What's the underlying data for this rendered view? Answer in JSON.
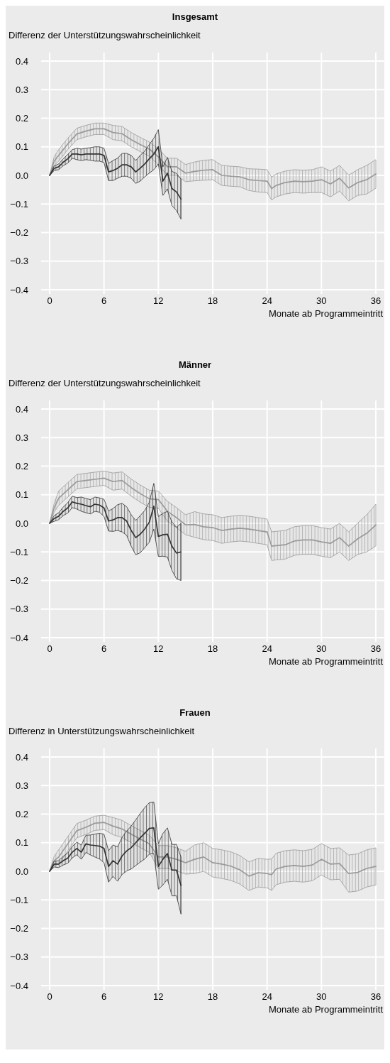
{
  "chart_data": [
    {
      "type": "line",
      "title": "Insgesamt",
      "ylabel": "Differenz der Unterstützungswahrscheinlichkeit",
      "xlabel": "Monate ab Programmeintritt",
      "xlim": [
        0,
        36
      ],
      "ylim": [
        -0.4,
        0.4
      ],
      "xticks": [
        0,
        6,
        12,
        18,
        24,
        30,
        36
      ],
      "yticks": [
        0.4,
        0.3,
        0.2,
        0.1,
        {
          "value": 0,
          "label": "0.0"
        },
        {
          "value": -0.1,
          "label": "−0.1"
        },
        {
          "value": -0.2,
          "label": "−0.2"
        },
        {
          "value": -0.3,
          "label": "−0.3"
        },
        {
          "value": -0.4,
          "label": "−0.4"
        }
      ],
      "grid": true,
      "series": [
        {
          "color": "#9a9a9a",
          "x": [
            0,
            0.5,
            1,
            2,
            3,
            4,
            5,
            6,
            7,
            8,
            9,
            10,
            11,
            12,
            13,
            14,
            15,
            16,
            17,
            18,
            19,
            20,
            21,
            22,
            23,
            24,
            24.5,
            25,
            26,
            27,
            28,
            29,
            30,
            31,
            32,
            33,
            34,
            35,
            36
          ],
          "values": [
            0,
            0.05,
            0.07,
            0.11,
            0.145,
            0.155,
            0.163,
            0.163,
            0.15,
            0.146,
            0.125,
            0.108,
            0.092,
            0.065,
            0.03,
            0.03,
            0.008,
            0.014,
            0.018,
            0.02,
            0,
            -0.003,
            -0.005,
            -0.015,
            -0.018,
            -0.02,
            -0.046,
            -0.035,
            -0.025,
            -0.02,
            -0.022,
            -0.02,
            -0.015,
            -0.03,
            -0.01,
            -0.044,
            -0.025,
            -0.015,
            0.005
          ],
          "lower": [
            0,
            0.035,
            0.05,
            0.09,
            0.125,
            0.135,
            0.143,
            0.143,
            0.125,
            0.121,
            0.1,
            0.083,
            0.067,
            0.037,
            0,
            0,
            -0.022,
            -0.019,
            -0.017,
            -0.015,
            -0.035,
            -0.038,
            -0.04,
            -0.053,
            -0.058,
            -0.06,
            -0.086,
            -0.075,
            -0.065,
            -0.06,
            -0.062,
            -0.06,
            -0.06,
            -0.075,
            -0.055,
            -0.089,
            -0.07,
            -0.065,
            -0.045
          ],
          "upper": [
            0,
            0.065,
            0.09,
            0.13,
            0.165,
            0.175,
            0.183,
            0.183,
            0.175,
            0.171,
            0.15,
            0.133,
            0.117,
            0.093,
            0.06,
            0.06,
            0.038,
            0.047,
            0.053,
            0.055,
            0.035,
            0.032,
            0.03,
            0.023,
            0.022,
            0.02,
            -0.006,
            0.005,
            0.015,
            0.02,
            0.018,
            0.02,
            0.03,
            0.015,
            0.035,
            0.001,
            0.02,
            0.035,
            0.055
          ]
        },
        {
          "color": "#333333",
          "x": [
            0,
            0.5,
            1,
            1.5,
            2,
            2.5,
            3,
            3.5,
            4,
            4.5,
            5,
            5.5,
            6,
            6.5,
            7,
            7.5,
            8,
            8.5,
            9,
            9.5,
            10,
            10.5,
            11,
            11.5,
            12,
            12.5,
            13,
            13.5,
            14,
            14.5
          ],
          "values": [
            0,
            0.025,
            0.03,
            0.046,
            0.058,
            0.075,
            0.075,
            0.072,
            0.075,
            0.075,
            0.075,
            0.075,
            0.07,
            0.012,
            0.017,
            0.025,
            0.037,
            0.037,
            0.03,
            0.012,
            0.025,
            0.04,
            0.058,
            0.075,
            0.1,
            -0.02,
            0.008,
            -0.046,
            -0.058,
            -0.083
          ],
          "lower": [
            0,
            0.017,
            0.02,
            0.034,
            0.043,
            0.06,
            0.055,
            0.052,
            0.055,
            0.053,
            0.05,
            0.05,
            0.045,
            -0.018,
            -0.018,
            -0.01,
            -0.003,
            -0.003,
            -0.01,
            -0.028,
            -0.02,
            -0.005,
            0.008,
            0.02,
            0.04,
            -0.07,
            -0.047,
            -0.106,
            -0.123,
            -0.153
          ],
          "upper": [
            0,
            0.033,
            0.04,
            0.058,
            0.073,
            0.09,
            0.095,
            0.092,
            0.095,
            0.097,
            0.1,
            0.1,
            0.095,
            0.042,
            0.052,
            0.06,
            0.077,
            0.077,
            0.07,
            0.052,
            0.07,
            0.085,
            0.108,
            0.13,
            0.16,
            0.03,
            0.063,
            0.014,
            0.007,
            -0.013
          ]
        }
      ]
    },
    {
      "type": "line",
      "title": "Männer",
      "ylabel": "Differenz der Unterstützungswahrscheinlichkeit",
      "xlabel": "Monate ab Programmeintritt",
      "xlim": [
        0,
        36
      ],
      "ylim": [
        -0.4,
        0.4
      ],
      "xticks": [
        0,
        6,
        12,
        18,
        24,
        30,
        36
      ],
      "yticks": [
        0.4,
        0.3,
        0.2,
        0.1,
        {
          "value": 0,
          "label": "0.0"
        },
        {
          "value": -0.1,
          "label": "−0.1"
        },
        {
          "value": -0.2,
          "label": "−0.2"
        },
        {
          "value": -0.3,
          "label": "−0.3"
        },
        {
          "value": -0.4,
          "label": "−0.4"
        }
      ],
      "grid": true,
      "series": [
        {
          "color": "#9a9a9a",
          "x": [
            0,
            0.5,
            1,
            2,
            3,
            4,
            5,
            6,
            7,
            8,
            9,
            10,
            11,
            12,
            13,
            14,
            15,
            16,
            17,
            18,
            19,
            20,
            21,
            22,
            23,
            24,
            24.5,
            25,
            26,
            27,
            28,
            29,
            30,
            31,
            32,
            33,
            34,
            35,
            36
          ],
          "values": [
            0,
            0.054,
            0.088,
            0.117,
            0.146,
            0.15,
            0.154,
            0.158,
            0.146,
            0.15,
            0.125,
            0.104,
            0.086,
            0.083,
            0.042,
            0.02,
            -0.005,
            -0.004,
            -0.012,
            -0.015,
            -0.025,
            -0.02,
            -0.017,
            -0.02,
            -0.025,
            -0.03,
            -0.08,
            -0.078,
            -0.075,
            -0.062,
            -0.058,
            -0.058,
            -0.065,
            -0.07,
            -0.05,
            -0.08,
            -0.054,
            -0.035,
            -0.006
          ],
          "lower": [
            0,
            0.039,
            0.063,
            0.092,
            0.121,
            0.125,
            0.129,
            0.133,
            0.116,
            0.12,
            0.095,
            0.074,
            0.056,
            0.053,
            0.007,
            -0.015,
            -0.04,
            -0.049,
            -0.057,
            -0.06,
            -0.07,
            -0.065,
            -0.062,
            -0.065,
            -0.07,
            -0.075,
            -0.13,
            -0.128,
            -0.125,
            -0.112,
            -0.108,
            -0.108,
            -0.115,
            -0.12,
            -0.1,
            -0.13,
            -0.109,
            -0.1,
            -0.079
          ],
          "upper": [
            0,
            0.069,
            0.113,
            0.142,
            0.171,
            0.175,
            0.179,
            0.183,
            0.176,
            0.18,
            0.155,
            0.134,
            0.116,
            0.113,
            0.077,
            0.055,
            0.03,
            0.041,
            0.033,
            0.03,
            0.02,
            0.025,
            0.028,
            0.025,
            0.02,
            0.015,
            -0.03,
            -0.028,
            -0.025,
            -0.012,
            -0.008,
            -0.008,
            -0.015,
            -0.02,
            0,
            -0.03,
            0.001,
            0.03,
            0.067
          ]
        },
        {
          "color": "#333333",
          "x": [
            0,
            0.5,
            1,
            1.5,
            2,
            2.5,
            3,
            3.5,
            4,
            4.5,
            5,
            5.5,
            6,
            6.5,
            7,
            7.5,
            8,
            8.5,
            9,
            9.5,
            10,
            10.5,
            11,
            11.5,
            12,
            12.5,
            13,
            13.5,
            14,
            14.5
          ],
          "values": [
            0,
            0.017,
            0.025,
            0.042,
            0.054,
            0.075,
            0.07,
            0.067,
            0.062,
            0.058,
            0.067,
            0.064,
            0.054,
            0.008,
            0.012,
            0.02,
            0.02,
            0.008,
            -0.025,
            -0.05,
            -0.038,
            -0.02,
            0.004,
            0.06,
            -0.046,
            -0.04,
            -0.038,
            -0.08,
            -0.104,
            -0.1
          ],
          "lower": [
            0,
            0.007,
            0.013,
            0.027,
            0.036,
            0.055,
            0.05,
            0.042,
            0.037,
            0.033,
            0.042,
            0.039,
            0.024,
            -0.027,
            -0.028,
            -0.025,
            -0.03,
            -0.042,
            -0.08,
            -0.11,
            -0.103,
            -0.085,
            -0.066,
            -0.02,
            -0.116,
            -0.115,
            -0.118,
            -0.165,
            -0.194,
            -0.2
          ],
          "upper": [
            0,
            0.027,
            0.037,
            0.057,
            0.072,
            0.095,
            0.09,
            0.092,
            0.087,
            0.083,
            0.092,
            0.089,
            0.084,
            0.043,
            0.052,
            0.065,
            0.07,
            0.058,
            0.03,
            0.01,
            0.027,
            0.045,
            0.074,
            0.14,
            0.024,
            0.035,
            0.042,
            0.005,
            -0.014,
            0
          ]
        }
      ]
    },
    {
      "type": "line",
      "title": "Frauen",
      "ylabel": "Differenz in Unterstützungswahrscheinlichkeit",
      "xlabel": "Monate ab Programmeintritt",
      "xlim": [
        0,
        36
      ],
      "ylim": [
        -0.4,
        0.4
      ],
      "xticks": [
        0,
        6,
        12,
        18,
        24,
        30,
        36
      ],
      "yticks": [
        0.4,
        0.3,
        0.2,
        0.1,
        {
          "value": 0,
          "label": "0.0"
        },
        {
          "value": -0.1,
          "label": "−0.1"
        },
        {
          "value": -0.2,
          "label": "−0.2"
        },
        {
          "value": -0.3,
          "label": "−0.3"
        },
        {
          "value": -0.4,
          "label": "−0.4"
        }
      ],
      "grid": true,
      "series": [
        {
          "color": "#9a9a9a",
          "x": [
            0,
            0.5,
            1,
            2,
            3,
            4,
            5,
            6,
            7,
            8,
            9,
            10,
            11,
            12,
            13,
            14,
            15,
            16,
            17,
            18,
            19,
            20,
            21,
            22,
            23,
            24,
            24.5,
            25,
            26,
            27,
            28,
            29,
            30,
            31,
            32,
            33,
            34,
            35,
            36
          ],
          "values": [
            0,
            0.037,
            0.05,
            0.096,
            0.142,
            0.154,
            0.168,
            0.171,
            0.158,
            0.148,
            0.13,
            0.113,
            0.096,
            0.05,
            0.05,
            0.042,
            0.03,
            0.042,
            0.05,
            0.03,
            0.025,
            0.018,
            0.005,
            -0.017,
            -0.005,
            -0.008,
            -0.012,
            0.008,
            0.017,
            0.02,
            0.017,
            0.022,
            0.042,
            0.025,
            0.027,
            -0.008,
            -0.004,
            0.01,
            0.017
          ],
          "lower": [
            0,
            0.022,
            0.025,
            0.071,
            0.117,
            0.129,
            0.143,
            0.146,
            0.128,
            0.118,
            0.1,
            0.083,
            0.066,
            0.01,
            0.01,
            0.002,
            -0.01,
            -0.008,
            0,
            -0.02,
            -0.025,
            -0.032,
            -0.045,
            -0.067,
            -0.055,
            -0.058,
            -0.067,
            -0.047,
            -0.038,
            -0.035,
            -0.038,
            -0.033,
            -0.013,
            -0.03,
            -0.028,
            -0.073,
            -0.069,
            -0.055,
            -0.048
          ],
          "upper": [
            0,
            0.052,
            0.075,
            0.121,
            0.167,
            0.179,
            0.193,
            0.196,
            0.188,
            0.178,
            0.16,
            0.143,
            0.126,
            0.09,
            0.09,
            0.082,
            0.07,
            0.092,
            0.1,
            0.08,
            0.075,
            0.068,
            0.055,
            0.033,
            0.045,
            0.042,
            0.043,
            0.063,
            0.072,
            0.075,
            0.072,
            0.077,
            0.097,
            0.08,
            0.082,
            0.057,
            0.061,
            0.075,
            0.082
          ]
        },
        {
          "color": "#333333",
          "x": [
            0,
            0.5,
            1,
            1.5,
            2,
            2.5,
            3,
            3.5,
            4,
            4.5,
            5,
            5.5,
            6,
            6.5,
            7,
            7.5,
            8,
            8.5,
            9,
            9.5,
            10,
            10.5,
            11,
            11.5,
            12,
            12.5,
            13,
            13.5,
            14,
            14.5
          ],
          "values": [
            0,
            0.025,
            0.025,
            0.037,
            0.046,
            0.067,
            0.08,
            0.067,
            0.096,
            0.092,
            0.09,
            0.088,
            0.08,
            0.017,
            0.037,
            0.025,
            0.054,
            0.071,
            0.083,
            0.1,
            0.117,
            0.133,
            0.15,
            0.152,
            0.017,
            0.042,
            0.062,
            0.004,
            0.004,
            -0.05
          ],
          "lower": [
            0,
            0.015,
            0.013,
            0.022,
            0.028,
            0.047,
            0.058,
            0.042,
            0.066,
            0.057,
            0.05,
            0.043,
            0.03,
            -0.038,
            -0.018,
            -0.035,
            -0.011,
            0.001,
            0.008,
            0.02,
            0.032,
            0.043,
            0.06,
            0.062,
            -0.063,
            -0.048,
            -0.028,
            -0.086,
            -0.086,
            -0.15
          ],
          "upper": [
            0,
            0.035,
            0.037,
            0.052,
            0.064,
            0.087,
            0.102,
            0.092,
            0.126,
            0.127,
            0.13,
            0.133,
            0.13,
            0.072,
            0.092,
            0.085,
            0.119,
            0.141,
            0.158,
            0.18,
            0.202,
            0.223,
            0.24,
            0.242,
            0.097,
            0.132,
            0.152,
            0.094,
            0.094,
            0.05
          ]
        }
      ]
    }
  ]
}
